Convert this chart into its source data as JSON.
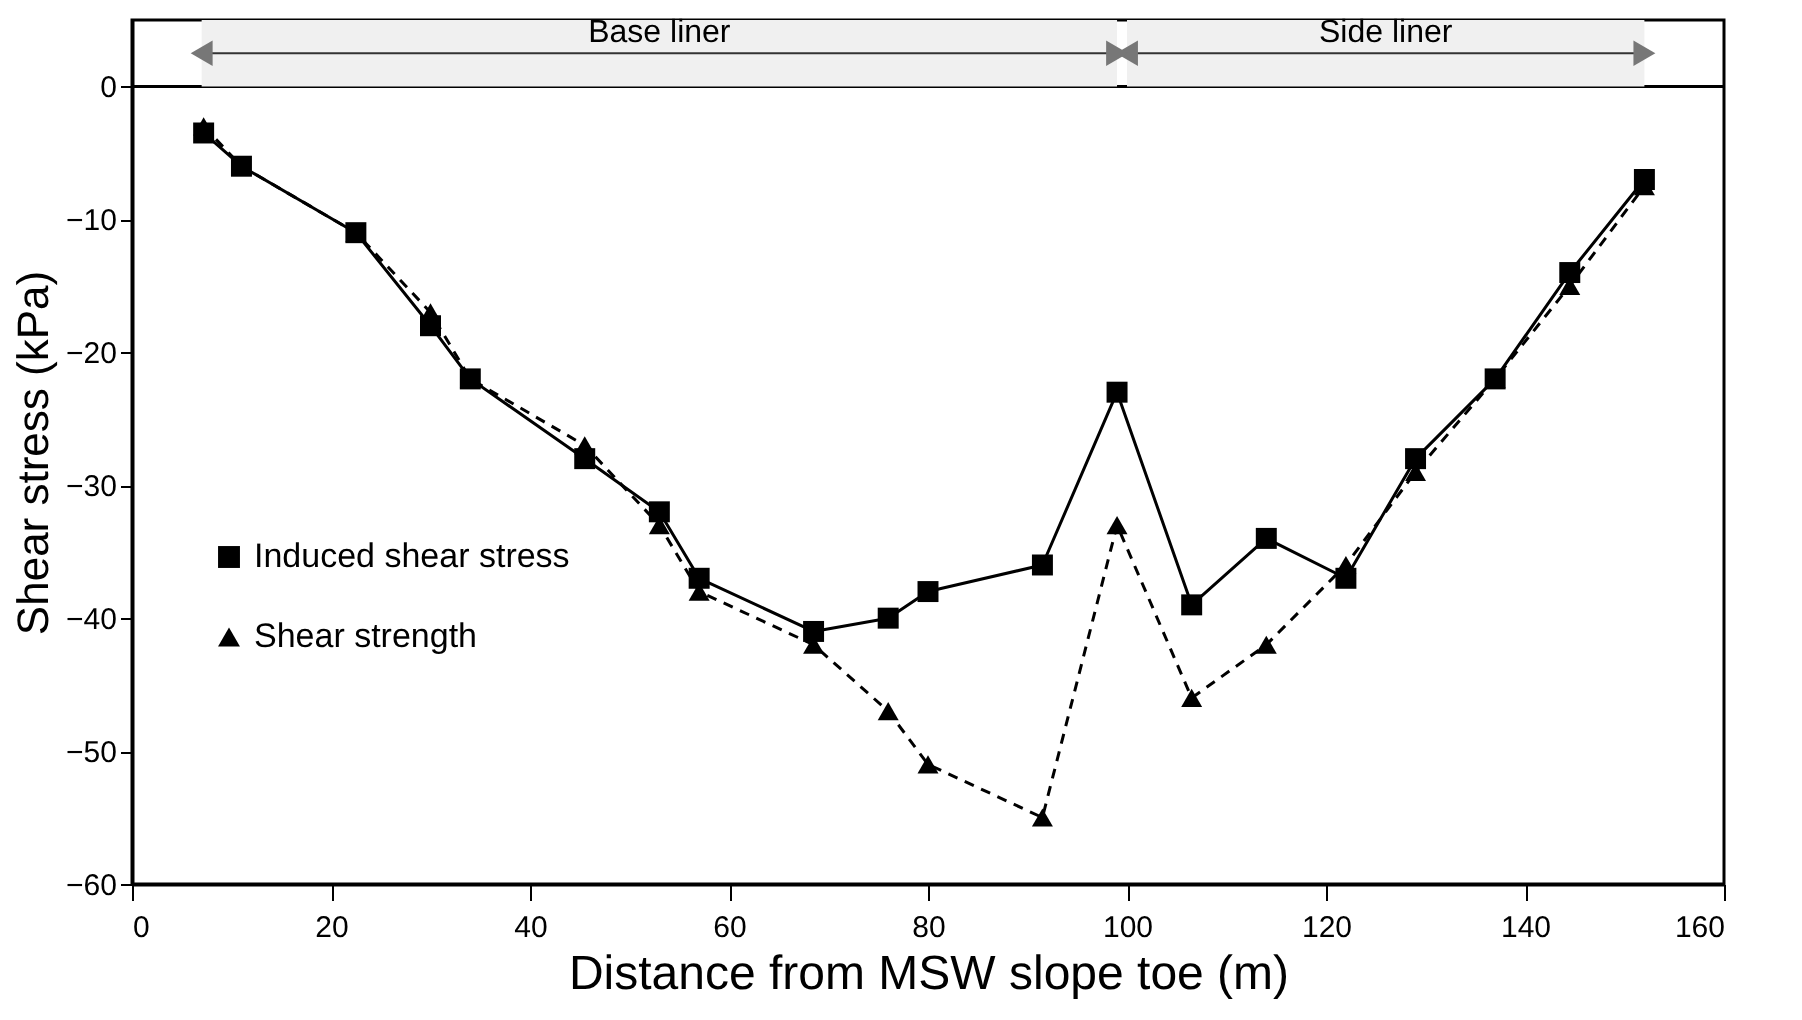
{
  "chart_data": {
    "type": "line",
    "xlabel": "Distance from MSW slope toe (m)",
    "ylabel": "Shear stress (kPa)",
    "x": [
      7.2,
      11,
      22.5,
      30,
      34,
      45.5,
      53,
      57,
      68.5,
      76,
      80,
      91.5,
      99,
      106.5,
      114,
      122,
      129,
      137,
      144.5,
      152
    ],
    "series": [
      {
        "name": "Induced shear stress",
        "color": "#000000",
        "marker": "square",
        "line_style": "solid",
        "values": [
          -3.5,
          -6,
          -11,
          -18,
          -22,
          -28,
          -32,
          -37,
          -41,
          -40,
          -38,
          -36,
          -23,
          -39,
          -34,
          -37,
          -28,
          -22,
          -14,
          -7
        ]
      },
      {
        "name": "Shear strength",
        "color": "#000000",
        "marker": "triangle",
        "line_style": "dashed",
        "values": [
          -3,
          -6,
          -11,
          -17,
          -22,
          -27,
          -33,
          -38,
          -42,
          -47,
          -51,
          -55,
          -33,
          -46,
          -42,
          -36,
          -29,
          -22,
          -15,
          -7.5
        ]
      }
    ],
    "xlim": [
      0,
      160
    ],
    "xticks": [
      0,
      20,
      40,
      60,
      80,
      100,
      120,
      140,
      160
    ],
    "ylim": [
      -60,
      5
    ],
    "yticks": [
      0,
      -10,
      -20,
      -30,
      -40,
      -50,
      -60
    ],
    "ref_lines": [
      {
        "axis": "y",
        "value": 0,
        "color": "#000000"
      }
    ],
    "bands": [
      {
        "axis": "x",
        "from": 7,
        "to": 99,
        "label": "Base liner",
        "color": "#f0f0f0"
      },
      {
        "axis": "x",
        "from": 100,
        "to": 152,
        "label": "Side liner",
        "color": "#f0f0f0"
      }
    ],
    "grid": false,
    "legend": "left"
  }
}
